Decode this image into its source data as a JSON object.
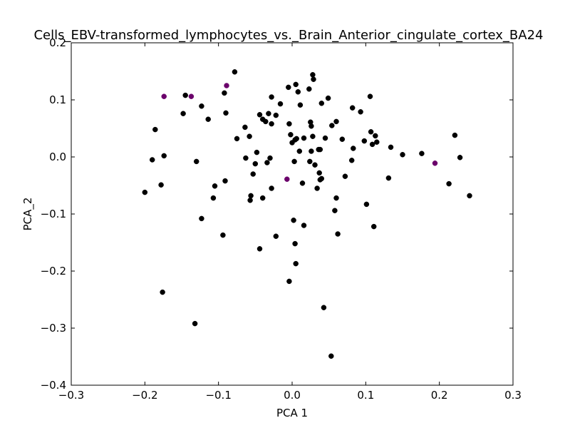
{
  "chart_data": {
    "type": "scatter",
    "title": "Cells_EBV-transformed_lymphocytes_vs._Brain_Anterior_cingulate_cortex_BA24",
    "xlabel": "PCA 1",
    "ylabel": "PCA_2",
    "xlim": [
      -0.3,
      0.3
    ],
    "ylim": [
      -0.4,
      0.2
    ],
    "xticks": [
      -0.3,
      -0.2,
      -0.1,
      0.0,
      0.1,
      0.2,
      0.3
    ],
    "xtick_labels": [
      "−0.3",
      "−0.2",
      "−0.1",
      "0.0",
      "0.1",
      "0.2",
      "0.3"
    ],
    "yticks": [
      -0.4,
      -0.3,
      -0.2,
      -0.1,
      0.0,
      0.1,
      0.2
    ],
    "ytick_labels": [
      "−0.4",
      "−0.3",
      "−0.2",
      "−0.1",
      "0.0",
      "0.1",
      "0.2"
    ],
    "grid": false,
    "series": [
      {
        "color": "#000000",
        "points": [
          [
            -0.145,
            0.108
          ],
          [
            -0.148,
            0.076
          ],
          [
            -0.123,
            0.089
          ],
          [
            -0.114,
            0.066
          ],
          [
            -0.092,
            0.112
          ],
          [
            -0.09,
            0.077
          ],
          [
            -0.078,
            0.149
          ],
          [
            -0.186,
            0.048
          ],
          [
            -0.19,
            -0.005
          ],
          [
            -0.174,
            0.002
          ],
          [
            -0.178,
            -0.049
          ],
          [
            -0.2,
            -0.062
          ],
          [
            -0.13,
            -0.008
          ],
          [
            -0.105,
            -0.051
          ],
          [
            -0.107,
            -0.072
          ],
          [
            -0.091,
            -0.042
          ],
          [
            -0.123,
            -0.108
          ],
          [
            -0.094,
            -0.137
          ],
          [
            -0.176,
            -0.237
          ],
          [
            -0.132,
            -0.292
          ],
          [
            -0.075,
            0.032
          ],
          [
            -0.064,
            0.052
          ],
          [
            -0.058,
            0.036
          ],
          [
            -0.063,
            -0.002
          ],
          [
            -0.05,
            -0.012
          ],
          [
            -0.048,
            0.008
          ],
          [
            -0.053,
            -0.03
          ],
          [
            -0.056,
            -0.068
          ],
          [
            -0.057,
            -0.076
          ],
          [
            -0.04,
            -0.072
          ],
          [
            -0.044,
            0.074
          ],
          [
            -0.04,
            0.066
          ],
          [
            -0.036,
            0.062
          ],
          [
            -0.032,
            0.076
          ],
          [
            -0.028,
            0.058
          ],
          [
            -0.028,
            0.105
          ],
          [
            -0.03,
            -0.002
          ],
          [
            -0.034,
            -0.01
          ],
          [
            -0.022,
            0.073
          ],
          [
            -0.016,
            0.093
          ],
          [
            -0.028,
            -0.055
          ],
          [
            -0.022,
            -0.139
          ],
          [
            -0.044,
            -0.161
          ],
          [
            -0.005,
            0.122
          ],
          [
            0.005,
            0.127
          ],
          [
            0.008,
            0.114
          ],
          [
            -0.004,
            0.058
          ],
          [
            -0.002,
            0.039
          ],
          [
            0.0,
            0.025
          ],
          [
            0.004,
            0.03
          ],
          [
            0.006,
            0.032
          ],
          [
            0.011,
            0.091
          ],
          [
            0.01,
            0.01
          ],
          [
            0.003,
            -0.008
          ],
          [
            0.002,
            -0.111
          ],
          [
            0.004,
            -0.152
          ],
          [
            0.005,
            -0.187
          ],
          [
            -0.004,
            -0.218
          ],
          [
            0.016,
            0.033
          ],
          [
            0.014,
            -0.046
          ],
          [
            0.016,
            -0.12
          ],
          [
            0.023,
            0.119
          ],
          [
            0.028,
            0.144
          ],
          [
            0.029,
            0.136
          ],
          [
            0.025,
            0.061
          ],
          [
            0.026,
            0.054
          ],
          [
            0.026,
            0.01
          ],
          [
            0.024,
            -0.008
          ],
          [
            0.028,
            0.036
          ],
          [
            0.031,
            -0.014
          ],
          [
            0.034,
            -0.055
          ],
          [
            0.036,
            0.013
          ],
          [
            0.038,
            0.013
          ],
          [
            0.04,
            0.094
          ],
          [
            0.037,
            -0.028
          ],
          [
            0.04,
            -0.038
          ],
          [
            0.038,
            -0.04
          ],
          [
            0.045,
            0.033
          ],
          [
            0.049,
            0.103
          ],
          [
            0.054,
            0.055
          ],
          [
            0.06,
            0.062
          ],
          [
            0.043,
            -0.264
          ],
          [
            0.053,
            -0.349
          ],
          [
            0.058,
            -0.094
          ],
          [
            0.06,
            -0.072
          ],
          [
            0.062,
            -0.135
          ],
          [
            0.068,
            0.031
          ],
          [
            0.072,
            -0.034
          ],
          [
            0.082,
            0.086
          ],
          [
            0.081,
            -0.006
          ],
          [
            0.083,
            0.015
          ],
          [
            0.093,
            0.079
          ],
          [
            0.098,
            0.028
          ],
          [
            0.101,
            -0.083
          ],
          [
            0.106,
            0.106
          ],
          [
            0.107,
            0.044
          ],
          [
            0.109,
            0.022
          ],
          [
            0.113,
            0.037
          ],
          [
            0.115,
            0.026
          ],
          [
            0.111,
            -0.122
          ],
          [
            0.131,
            -0.037
          ],
          [
            0.134,
            0.017
          ],
          [
            0.15,
            0.004
          ],
          [
            0.176,
            0.006
          ],
          [
            0.213,
            -0.047
          ],
          [
            0.221,
            0.038
          ],
          [
            0.228,
            -0.001
          ],
          [
            0.241,
            -0.068
          ]
        ]
      },
      {
        "color": "#6b006b",
        "points": [
          [
            -0.174,
            0.106
          ],
          [
            -0.137,
            0.106
          ],
          [
            -0.089,
            0.125
          ],
          [
            -0.007,
            -0.039
          ],
          [
            0.194,
            -0.011
          ]
        ]
      }
    ]
  }
}
